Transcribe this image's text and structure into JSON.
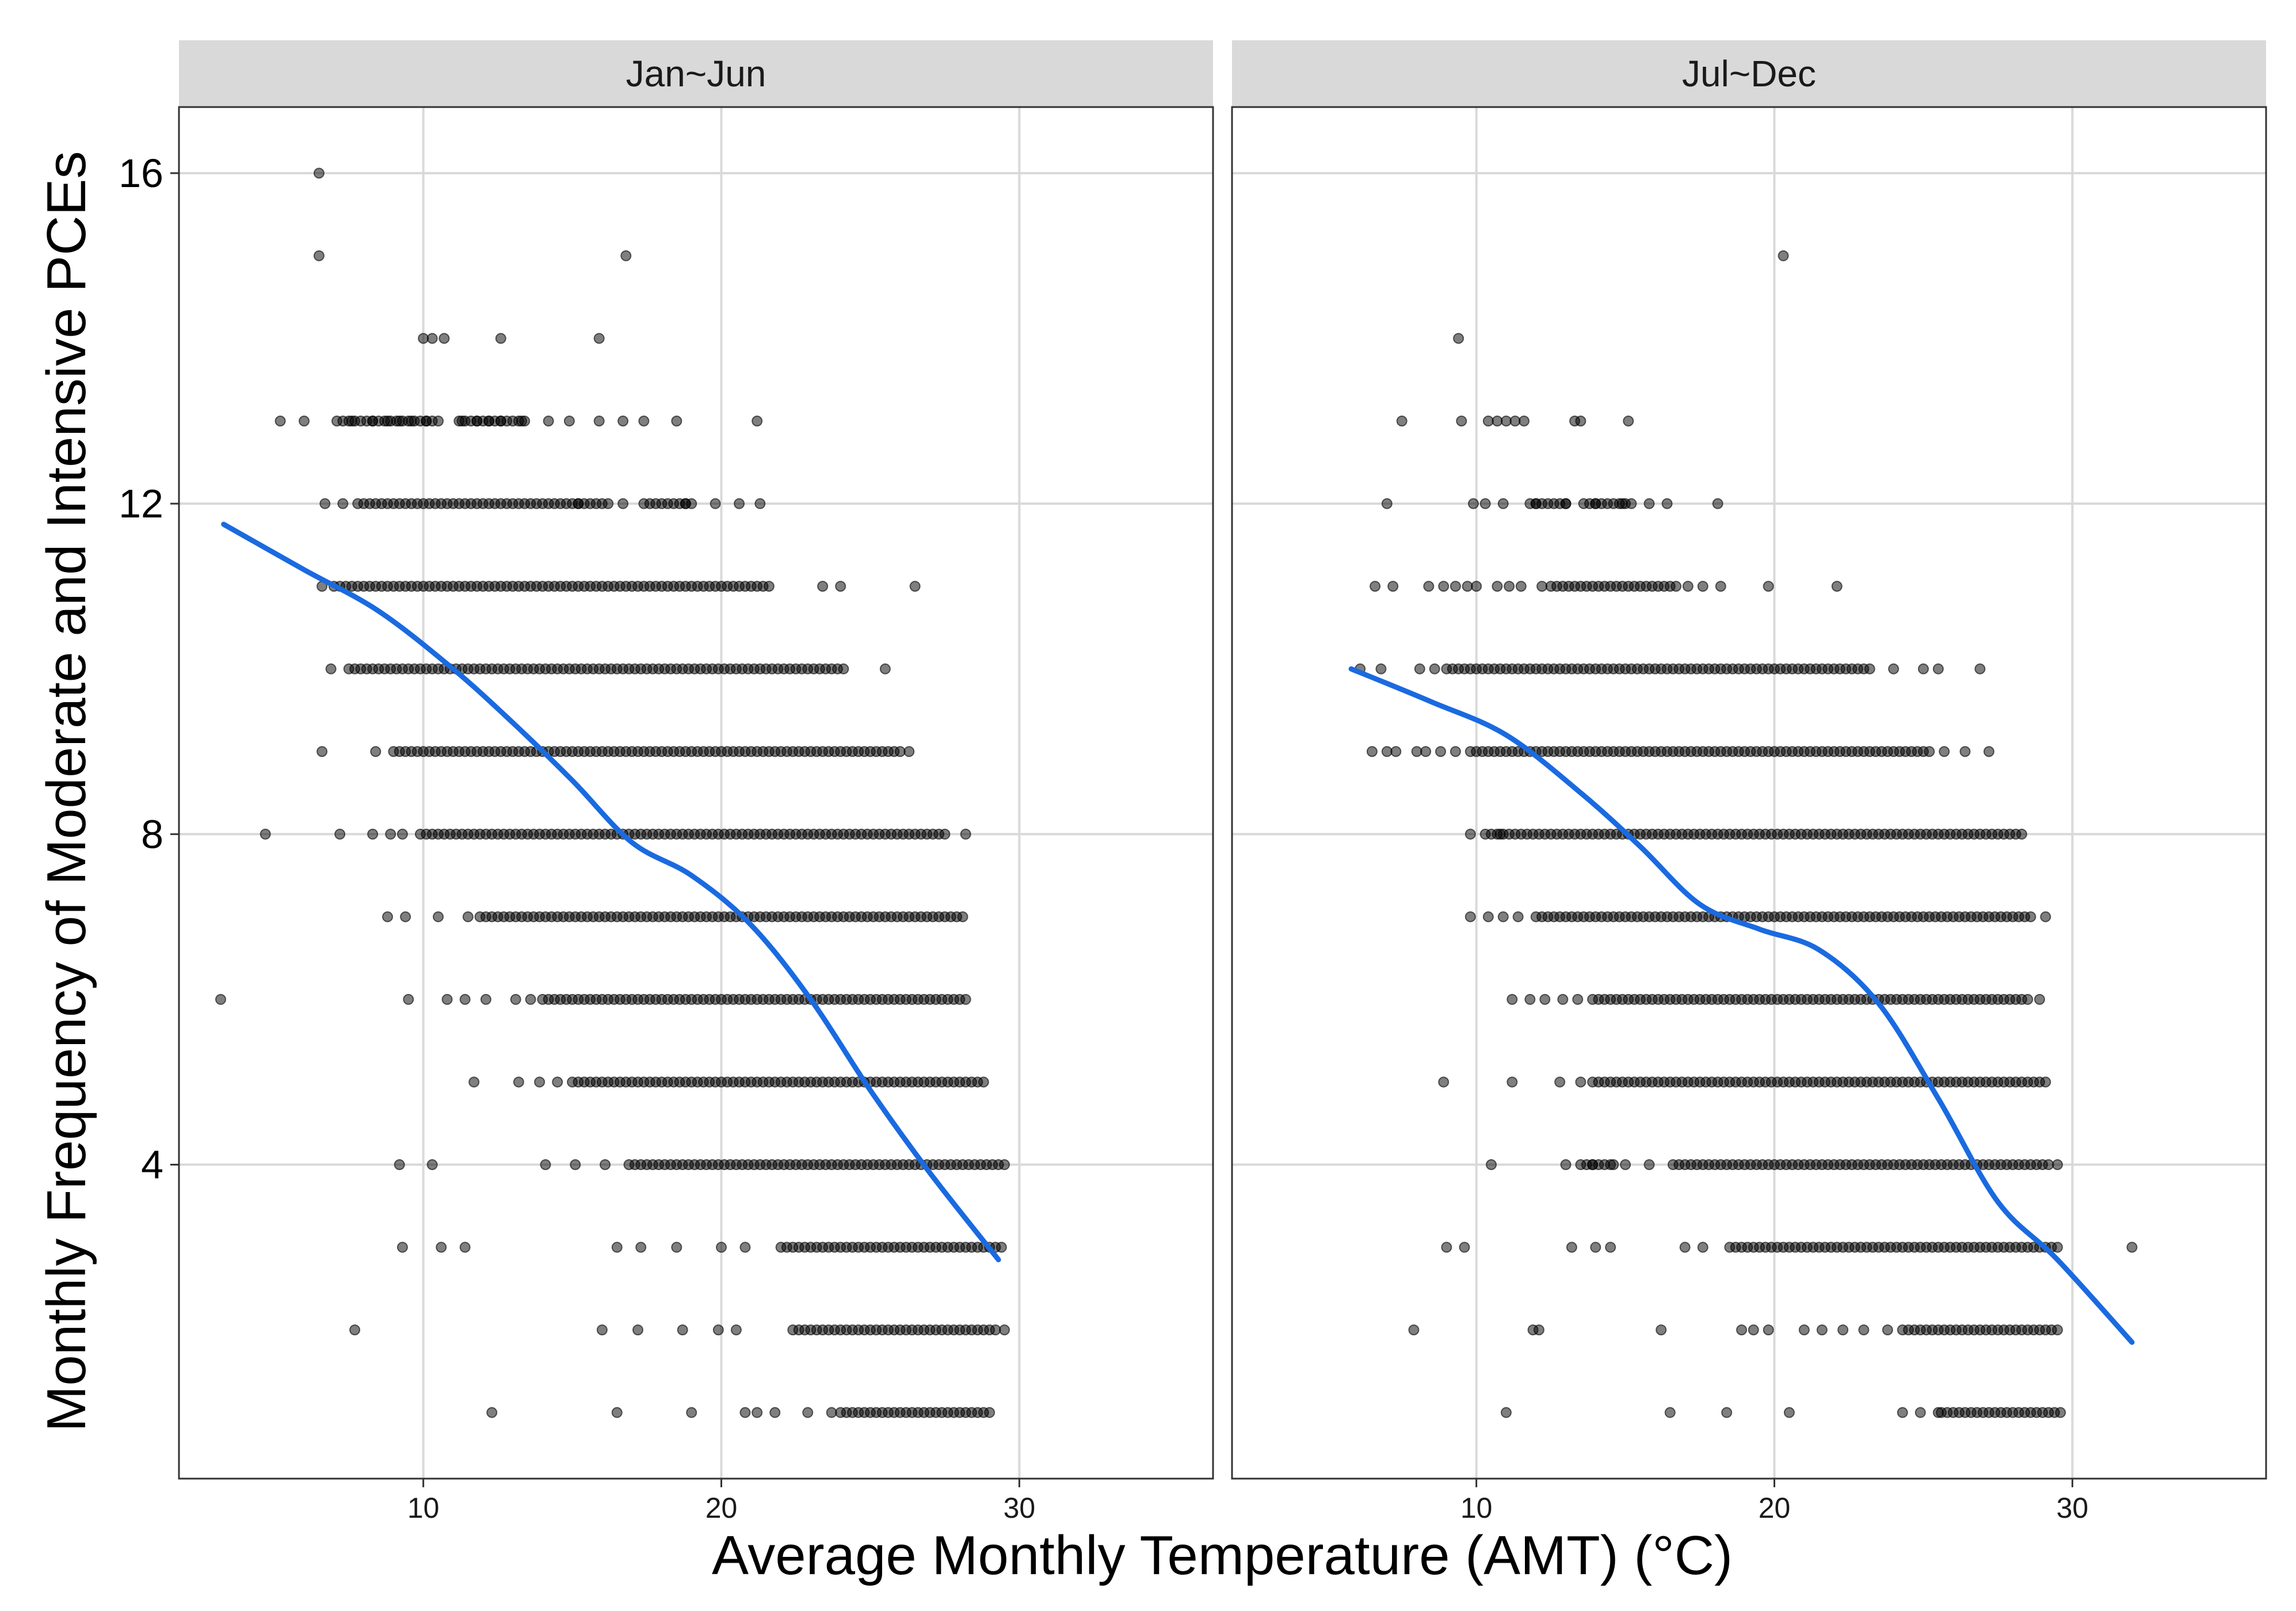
{
  "chart_data": {
    "type": "scatter",
    "xlabel": "Average Monthly Temperature (AMT) (°C)",
    "ylabel": "Monthly Frequency of Moderate and Intensive PCEs",
    "xlim": [
      1.8,
      36.5
    ],
    "ylim": [
      0.2,
      16.8
    ],
    "xticks": [
      10,
      20,
      30
    ],
    "yticks": [
      4,
      8,
      12,
      16
    ],
    "grid": true,
    "colors": {
      "point": "#000000",
      "smooth": "#1a6ae0",
      "strip": "#d9d9d9",
      "grid": "#d9d9d9"
    },
    "panels": [
      {
        "title": "Jan~Jun",
        "rows": [
          {
            "y": 16,
            "x": [
              6.5
            ]
          },
          {
            "y": 15,
            "x": [
              6.5,
              16.8
            ]
          },
          {
            "y": 14,
            "x": [
              10.0,
              10.3,
              10.7,
              12.6,
              15.9
            ]
          },
          {
            "y": 13,
            "x": [
              5.2,
              6.0,
              7.1,
              7.6,
              8.3,
              8.8,
              9.2,
              9.6,
              10.1,
              11.3,
              11.8,
              12.2,
              12.6,
              13.3,
              14.2,
              14.9,
              15.9,
              16.7,
              17.4,
              18.5,
              21.2
            ],
            "dense": [
              [
                7.3,
                10.6
              ],
              [
                11.2,
                13.4
              ]
            ]
          },
          {
            "y": 12,
            "x": [
              6.7,
              7.3,
              15.2,
              16.7,
              17.4,
              18.8,
              19.8,
              20.6,
              21.3
            ],
            "dense": [
              [
                7.8,
                16.2
              ],
              [
                17.6,
                19.1
              ]
            ]
          },
          {
            "y": 11,
            "x": [
              6.6,
              23.4,
              24.0,
              26.5
            ],
            "dense": [
              [
                7.0,
                21.6
              ]
            ]
          },
          {
            "y": 10,
            "x": [
              6.9,
              25.5
            ],
            "dense": [
              [
                7.5,
                24.2
              ]
            ]
          },
          {
            "y": 9,
            "x": [
              6.6,
              8.4,
              26.3
            ],
            "dense": [
              [
                9.0,
                26.0
              ]
            ]
          },
          {
            "y": 8,
            "x": [
              4.7,
              7.2,
              8.3,
              8.9,
              9.3,
              28.2
            ],
            "dense": [
              [
                9.9,
                27.6
              ]
            ]
          },
          {
            "y": 7,
            "x": [
              8.8,
              9.4,
              10.5,
              11.5
            ],
            "dense": [
              [
                11.9,
                28.2
              ]
            ]
          },
          {
            "y": 6,
            "x": [
              3.2,
              9.5,
              10.8,
              11.4,
              12.1,
              13.1,
              13.6
            ],
            "dense": [
              [
                14.0,
                28.3
              ]
            ]
          },
          {
            "y": 5,
            "x": [
              11.7,
              13.2,
              13.9,
              14.5
            ],
            "dense": [
              [
                15.0,
                28.8
              ]
            ]
          },
          {
            "y": 4,
            "x": [
              9.2,
              10.3,
              14.1,
              15.1,
              16.1
            ],
            "dense": [
              [
                16.9,
                29.5
              ]
            ]
          },
          {
            "y": 3,
            "x": [
              9.3,
              10.6,
              11.4,
              16.5,
              17.3,
              18.5,
              20.0,
              20.8
            ],
            "dense": [
              [
                22.0,
                29.4
              ]
            ]
          },
          {
            "y": 2,
            "x": [
              7.7,
              16.0,
              17.2,
              18.7,
              19.9,
              20.5,
              29.5
            ],
            "dense": [
              [
                22.4,
                29.3
              ]
            ]
          },
          {
            "y": 1,
            "x": [
              12.3,
              16.5,
              19.0,
              20.8,
              21.2,
              21.8,
              22.9,
              23.7
            ],
            "dense": [
              [
                24.0,
                29.1
              ]
            ]
          }
        ],
        "smooth": [
          {
            "x": 3.3,
            "y": 11.75
          },
          {
            "x": 6.0,
            "y": 11.2
          },
          {
            "x": 8.5,
            "y": 10.7
          },
          {
            "x": 11.0,
            "y": 10.0
          },
          {
            "x": 13.0,
            "y": 9.35
          },
          {
            "x": 15.0,
            "y": 8.65
          },
          {
            "x": 17.0,
            "y": 7.9
          },
          {
            "x": 19.0,
            "y": 7.5
          },
          {
            "x": 21.0,
            "y": 6.9
          },
          {
            "x": 23.0,
            "y": 6.0
          },
          {
            "x": 25.0,
            "y": 4.9
          },
          {
            "x": 27.0,
            "y": 3.9
          },
          {
            "x": 29.3,
            "y": 2.85
          }
        ]
      },
      {
        "title": "Jul~Dec",
        "rows": [
          {
            "y": 15,
            "x": [
              20.3
            ]
          },
          {
            "y": 14,
            "x": [
              9.4
            ]
          },
          {
            "y": 13,
            "x": [
              7.5,
              9.5,
              10.4,
              10.7,
              11.0,
              11.3,
              11.6,
              13.3,
              13.5,
              15.1
            ]
          },
          {
            "y": 12,
            "x": [
              7.0,
              9.9,
              10.3,
              10.9,
              12.0,
              13.0,
              14.0,
              14.9,
              15.8,
              16.4,
              18.1
            ],
            "dense": [
              [
                11.8,
                13.0
              ],
              [
                13.6,
                15.2
              ]
            ]
          },
          {
            "y": 11,
            "x": [
              6.6,
              7.2,
              8.4,
              8.9,
              9.3,
              9.7,
              10.0,
              10.7,
              11.1,
              11.5,
              12.2,
              17.1,
              17.6,
              18.2,
              19.8,
              22.1
            ],
            "dense": [
              [
                12.5,
                16.8
              ]
            ]
          },
          {
            "y": 10,
            "x": [
              6.1,
              6.8,
              8.1,
              8.6,
              24.0,
              25.0,
              25.5,
              26.9
            ],
            "dense": [
              [
                9.0,
                23.2
              ]
            ]
          },
          {
            "y": 9,
            "x": [
              6.5,
              7.0,
              7.3,
              8.0,
              8.3,
              8.8,
              9.3,
              9.8,
              25.7,
              26.4,
              27.2
            ],
            "dense": [
              [
                10.0,
                25.3
              ]
            ]
          },
          {
            "y": 8,
            "x": [
              9.8,
              10.3,
              10.8
            ],
            "dense": [
              [
                10.5,
                28.4
              ]
            ]
          },
          {
            "y": 7,
            "x": [
              9.8,
              10.4,
              10.9,
              11.4,
              29.1
            ],
            "dense": [
              [
                12.0,
                28.7
              ]
            ]
          },
          {
            "y": 6,
            "x": [
              11.2,
              11.8,
              12.3,
              12.9,
              13.4,
              28.9
            ],
            "dense": [
              [
                13.9,
                28.5
              ]
            ]
          },
          {
            "y": 5,
            "x": [
              8.9,
              11.2,
              12.8,
              13.5,
              28.9,
              29.1
            ],
            "dense": [
              [
                13.9,
                28.7
              ]
            ]
          },
          {
            "y": 4,
            "x": [
              10.5,
              13.0,
              13.9,
              14.6,
              15.0,
              15.8,
              29.5
            ],
            "dense": [
              [
                13.5,
                14.5
              ],
              [
                16.6,
                29.3
              ]
            ]
          },
          {
            "y": 3,
            "x": [
              9.0,
              9.6,
              13.2,
              14.0,
              14.5,
              17.0,
              17.6,
              32.0
            ],
            "dense": [
              [
                18.5,
                29.6
              ]
            ]
          },
          {
            "y": 2,
            "x": [
              7.9,
              11.9,
              12.1,
              16.2,
              18.9,
              19.3,
              19.8,
              21.0,
              21.6,
              22.3,
              23.0,
              23.8
            ],
            "dense": [
              [
                24.3,
                29.5
              ]
            ]
          },
          {
            "y": 1,
            "x": [
              11.0,
              16.5,
              18.4,
              20.5,
              24.3,
              24.9,
              25.5
            ],
            "dense": [
              [
                25.6,
                29.6
              ]
            ]
          }
        ],
        "smooth": [
          {
            "x": 5.8,
            "y": 10.0
          },
          {
            "x": 8.5,
            "y": 9.6
          },
          {
            "x": 11.0,
            "y": 9.2
          },
          {
            "x": 13.5,
            "y": 8.5
          },
          {
            "x": 15.5,
            "y": 7.85
          },
          {
            "x": 17.5,
            "y": 7.15
          },
          {
            "x": 19.5,
            "y": 6.85
          },
          {
            "x": 21.5,
            "y": 6.6
          },
          {
            "x": 23.5,
            "y": 5.95
          },
          {
            "x": 25.5,
            "y": 4.8
          },
          {
            "x": 27.5,
            "y": 3.55
          },
          {
            "x": 29.5,
            "y": 2.85
          },
          {
            "x": 32.0,
            "y": 1.85
          }
        ]
      }
    ]
  }
}
